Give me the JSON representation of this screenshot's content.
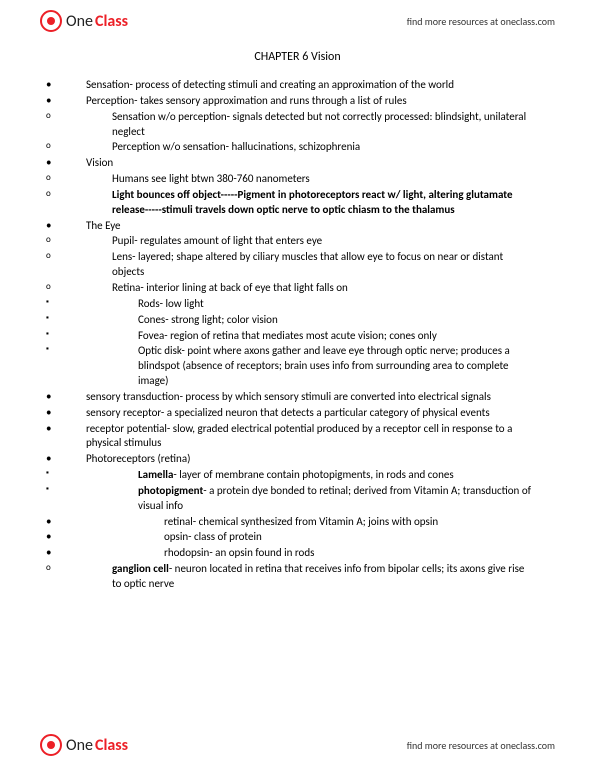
{
  "brand": {
    "one": "One",
    "class": "Class",
    "resourcesLink": "find more resources at oneclass.com"
  },
  "title": "CHAPTER 6 Vision",
  "items": {
    "sensation": "Sensation- process of detecting stimuli and creating an approximation of the world",
    "perception": "Perception- takes sensory approximation and runs through a list of rules",
    "perc1": "Sensation w/o perception- signals detected but not correctly processed: blindsight, unilateral neglect",
    "perc2": "Perception w/o sensation- hallucinations, schizophrenia",
    "vision": "Vision",
    "vis1": "Humans see light btwn 380-760 nanometers",
    "vis2a": "Light bounces off object-----Pigment in photoreceptors react w/ light, altering glutamate release-----stimuli travels down optic nerve to optic chiasm to the thalamus",
    "eye": "The Eye",
    "eye1": "Pupil- regulates amount of light that enters eye",
    "eye2": "Lens- layered; shape altered by ciliary muscles that allow eye to focus on near or distant objects",
    "eye3": "Retina- interior lining at back of eye that light falls on",
    "ret1": "Rods- low light",
    "ret2": "Cones- strong light; color vision",
    "ret3": "Fovea- region of retina that mediates most acute vision; cones only",
    "ret4": "Optic disk- point where axons gather and leave eye through optic nerve; produces a blindspot (absence of receptors; brain uses info from surrounding area to complete image)",
    "transduction": "sensory transduction- process by which sensory stimuli are converted into electrical signals",
    "receptor": "sensory receptor- a specialized neuron that detects a particular category of physical events",
    "potential": "receptor potential- slow, graded electrical potential produced by a receptor cell in response to a physical stimulus",
    "photo": "Photoreceptors (retina)",
    "photo1a": "Lamella",
    "photo1b": "- layer of membrane contain photopigments, in rods and cones",
    "photo2a": "photopigment",
    "photo2b": "- a protein dye bonded to retinal; derived from Vitamin A; transduction of visual info",
    "pp1": "retinal- chemical synthesized from Vitamin A; joins with opsin",
    "pp2": "opsin- class of protein",
    "pp3": "rhodopsin- an opsin found in rods",
    "ganglion1": "ganglion cell",
    "ganglion2": "- neuron located in retina that receives info from bipolar cells; its axons give rise to optic nerve"
  }
}
